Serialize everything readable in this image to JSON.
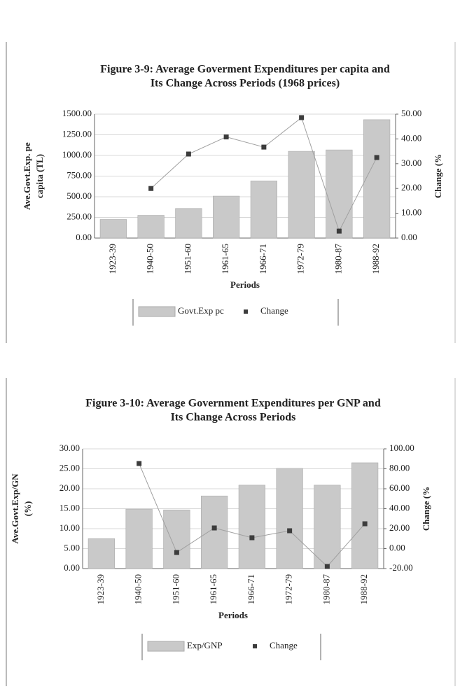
{
  "chart_data": [
    {
      "type": "bar",
      "title": [
        "Figure 3-9: Average Goverment Expenditures per capita and",
        "Its Change Across Periods (1968 prices)"
      ],
      "xlabel": "Periods",
      "ylabel": [
        "Ave.Govt.Exp. pe",
        "capita (TL)"
      ],
      "y2label": "Change (%",
      "categories": [
        "1923-39",
        "1940-50",
        "1951-60",
        "1961-65",
        "1966-71",
        "1972-79",
        "1980-87",
        "1988-92"
      ],
      "series": [
        {
          "name": "Govt.Exp pc",
          "type": "bar",
          "color": "#c9c9c9",
          "values": [
            225,
            275,
            358,
            508,
            692,
            1050,
            1067,
            1433
          ]
        },
        {
          "name": "Change",
          "type": "line",
          "axis": "y2",
          "color": "#3c3c3c",
          "line_color": "#a0a0a0",
          "values": [
            null,
            20,
            33.9,
            40.8,
            36.7,
            48.6,
            2.8,
            32.5
          ]
        }
      ],
      "ylim": [
        0,
        1500
      ],
      "yticks": [
        {
          "value": 0,
          "label": "0.00"
        },
        {
          "value": 250,
          "label": "250.00"
        },
        {
          "value": 500,
          "label": "500.00"
        },
        {
          "value": 750,
          "label": "750.00"
        },
        {
          "value": 1000,
          "label": "1000.00"
        },
        {
          "value": 1250,
          "label": "1250.00"
        },
        {
          "value": 1500,
          "label": "1500.00"
        }
      ],
      "y2lim": [
        0,
        50
      ],
      "y2ticks": [
        {
          "value": 0,
          "label": "0.00"
        },
        {
          "value": 10,
          "label": "10.00"
        },
        {
          "value": 20,
          "label": "20.00"
        },
        {
          "value": 30,
          "label": "30.00"
        },
        {
          "value": 40,
          "label": "40.00"
        },
        {
          "value": 50,
          "label": "50.00"
        }
      ],
      "grid": true
    },
    {
      "type": "bar",
      "title": [
        "Figure 3-10: Average Government Expenditures per GNP and",
        "Its Change Across Periods"
      ],
      "xlabel": "Periods",
      "ylabel": [
        "Ave.Govt.Exp/GN",
        "(%)"
      ],
      "y2label": "Change (%",
      "categories": [
        "1923-39",
        "1940-50",
        "1951-60",
        "1961-65",
        "1966-71",
        "1972-79",
        "1980-87",
        "1988-92"
      ],
      "series": [
        {
          "name": "Exp/GNP",
          "type": "bar",
          "color": "#c9c9c9",
          "values": [
            7.5,
            14.9,
            14.7,
            18.2,
            20.9,
            25.1,
            20.9,
            26.5
          ]
        },
        {
          "name": "Change",
          "type": "line",
          "axis": "y2",
          "color": "#3c3c3c",
          "line_color": "#a0a0a0",
          "values": [
            null,
            85.3,
            -3.9,
            20.7,
            10.9,
            17.9,
            -17.9,
            24.9
          ]
        }
      ],
      "ylim": [
        0,
        30
      ],
      "yticks": [
        {
          "value": 0,
          "label": "0.00"
        },
        {
          "value": 5,
          "label": "5.00"
        },
        {
          "value": 10,
          "label": "10.00"
        },
        {
          "value": 15,
          "label": "15.00"
        },
        {
          "value": 20,
          "label": "20.00"
        },
        {
          "value": 25,
          "label": "25.00"
        },
        {
          "value": 30,
          "label": "30.00"
        }
      ],
      "y2lim": [
        -20,
        100
      ],
      "y2ticks": [
        {
          "value": -20,
          "label": "-20.00"
        },
        {
          "value": 0,
          "label": "0.00"
        },
        {
          "value": 20,
          "label": "20.00"
        },
        {
          "value": 40,
          "label": "40.00"
        },
        {
          "value": 60,
          "label": "60.00"
        },
        {
          "value": 80,
          "label": "80.00"
        },
        {
          "value": 100,
          "label": "100.00"
        }
      ],
      "grid": true
    }
  ]
}
